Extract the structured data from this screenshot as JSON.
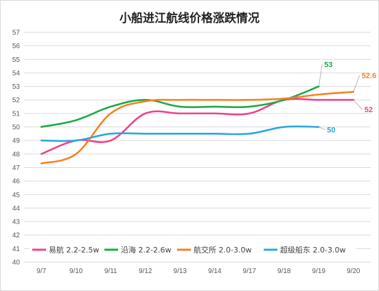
{
  "chart_data": {
    "type": "line",
    "title": "小船进江航线价格涨跌情况",
    "categories": [
      "9/7",
      "9/10",
      "9/11",
      "9/12",
      "9/13",
      "9/14",
      "9/17",
      "9/18",
      "9/19",
      "9/20"
    ],
    "ylim": [
      40,
      57
    ],
    "yticks": [
      40,
      41,
      42,
      43,
      44,
      45,
      46,
      47,
      48,
      49,
      50,
      51,
      52,
      53,
      54,
      55,
      56,
      57
    ],
    "grid": true,
    "legend": "bottom-inside",
    "series": [
      {
        "name": "易航 2.2-2.5w",
        "color": "#f0418c",
        "values": [
          48,
          49,
          49,
          51,
          51,
          51,
          51,
          52,
          52,
          52
        ],
        "end_label": "52"
      },
      {
        "name": "沿海 2.2-2.6w",
        "color": "#1aab47",
        "values": [
          50,
          50.5,
          51.5,
          52,
          51.5,
          51.5,
          51.5,
          52,
          53,
          null
        ],
        "end_label": "53"
      },
      {
        "name": "航交所 2.0-3.0w",
        "color": "#f58220",
        "values": [
          47.3,
          48,
          51,
          51.9,
          52,
          52,
          52,
          52.1,
          52.4,
          52.6
        ],
        "end_label": "52.6"
      },
      {
        "name": "超级船东 2.0-3.0w",
        "color": "#29a8e0",
        "values": [
          49,
          49,
          49.5,
          49.5,
          49.5,
          49.5,
          49.5,
          50,
          50,
          null
        ],
        "end_label": "50"
      }
    ]
  }
}
